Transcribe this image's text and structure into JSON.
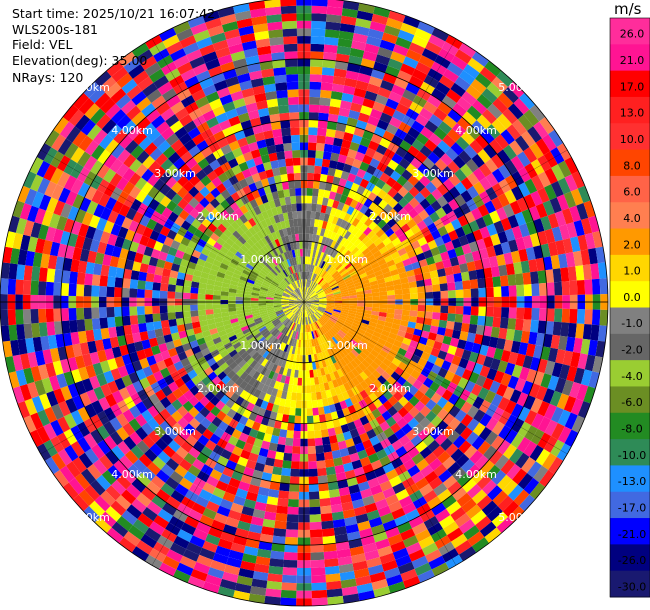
{
  "header": {
    "start_time": "Start time: 2025/10/21 16:07:42",
    "instrument": "WLS200s-181",
    "field": "Field: VEL",
    "elevation": "Elevation(deg): 35.00",
    "nrays": "NRays: 120"
  },
  "colorbar": {
    "unit": "m/s",
    "ticks": [
      "26.0",
      "21.0",
      "17.0",
      "13.0",
      "10.0",
      "8.0",
      "6.0",
      "4.0",
      "2.0",
      "1.0",
      "0.0",
      "-1.0",
      "-2.0",
      "-4.0",
      "-6.0",
      "-8.0",
      "-10.0",
      "-13.0",
      "-17.0",
      "-21.0",
      "-26.0",
      "-30.0"
    ],
    "colors": [
      "#ff2d9b",
      "#ff1493",
      "#ff0000",
      "#ff2020",
      "#ff3030",
      "#ff4500",
      "#ff6347",
      "#ff7f50",
      "#ff9900",
      "#ffd700",
      "#ffff00",
      "#808080",
      "#666666",
      "#9acd32",
      "#6b8e23",
      "#228b22",
      "#2e8b57",
      "#1e90ff",
      "#4169e1",
      "#0000ff",
      "#000080",
      "#191970"
    ]
  },
  "chart_data": {
    "type": "heatmap",
    "projection": "polar PPI",
    "field": "VEL",
    "unit": "m/s",
    "nrays": 120,
    "elevation_deg": 35.0,
    "range_rings": [
      "1.00km",
      "2.00km",
      "3.00km",
      "4.00km",
      "5.00km"
    ],
    "range_max_km": 5.0,
    "value_range": [
      -30.0,
      30.0
    ],
    "pattern": {
      "inner_region_km": 1.8,
      "inner_flow": "negative velocities (green/blue) toward west and north-west, positive velocities (yellow/orange) toward east and south-east",
      "outer_region": "noisy random velocities"
    }
  }
}
